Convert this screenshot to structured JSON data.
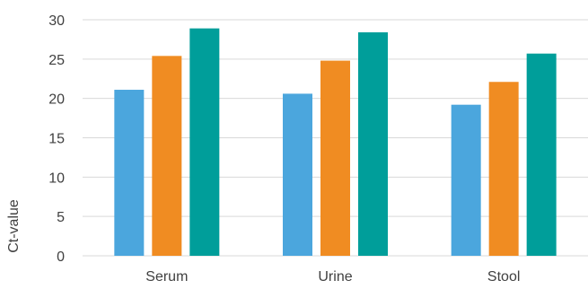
{
  "chart_data": {
    "type": "bar",
    "title": "",
    "xlabel": "",
    "ylabel": "Ct-value",
    "ylim": [
      0,
      30
    ],
    "yticks": [
      0,
      5,
      10,
      15,
      20,
      25,
      30
    ],
    "grid": true,
    "legend": "none",
    "categories": [
      "Serum",
      "Urine",
      "Stool"
    ],
    "series": [
      {
        "color": "#4ba6dd",
        "values": [
          21.1,
          20.6,
          19.2
        ]
      },
      {
        "color": "#f08c22",
        "values": [
          25.4,
          24.8,
          22.1
        ]
      },
      {
        "color": "#009e9a",
        "values": [
          28.9,
          28.4,
          25.7
        ]
      }
    ]
  }
}
